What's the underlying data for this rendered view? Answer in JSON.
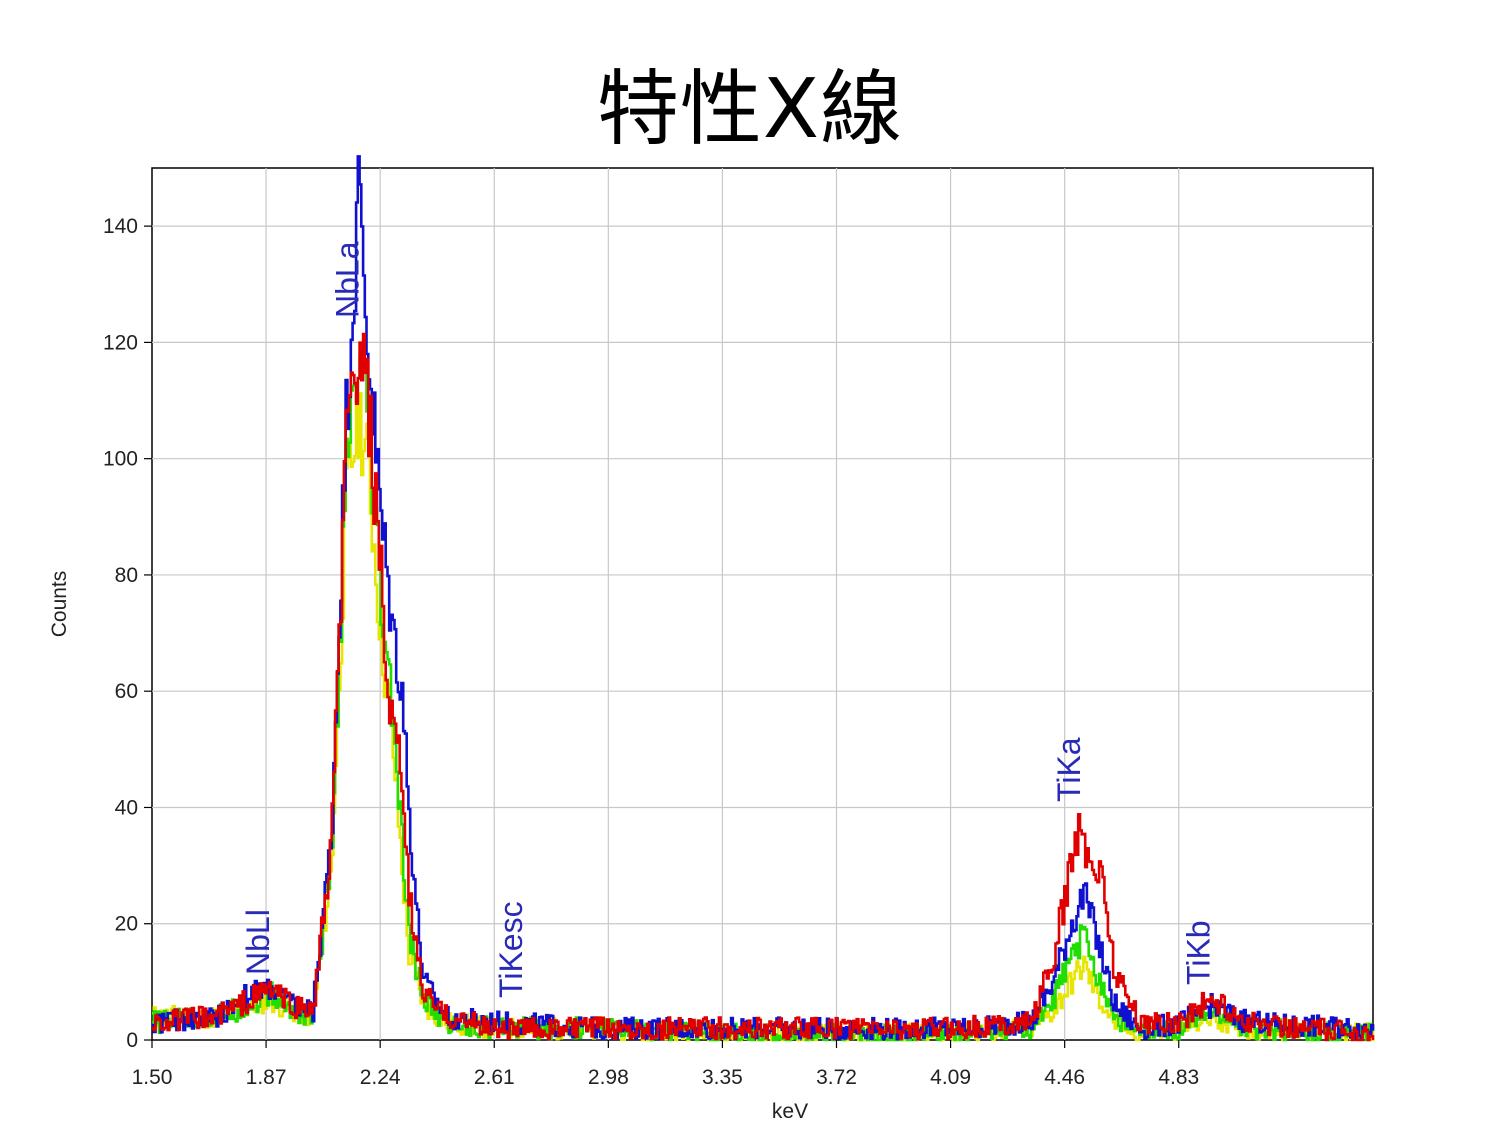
{
  "slide": {
    "title": "特性X線"
  },
  "chart_data": {
    "type": "line",
    "title": "",
    "xlabel": "keV",
    "ylabel": "Counts",
    "xlim": [
      1.5,
      5.46
    ],
    "ylim": [
      0,
      150
    ],
    "grid": true,
    "x_ticks": [
      "1.50",
      "1.87",
      "2.24",
      "2.61",
      "2.98",
      "3.35",
      "3.72",
      "4.09",
      "4.46",
      "4.83"
    ],
    "y_ticks": [
      "0",
      "20",
      "40",
      "60",
      "80",
      "100",
      "120",
      "140"
    ],
    "peak_labels": [
      {
        "text": "NbLl",
        "x": 1.88
      },
      {
        "text": "NbLa",
        "x": 2.17
      },
      {
        "text": "TiKesc",
        "x": 2.7
      },
      {
        "text": "TiKa",
        "x": 4.51
      },
      {
        "text": "TiKb",
        "x": 4.93
      }
    ],
    "series_colors": [
      "#e6e600",
      "#22dd00",
      "#1010d0",
      "#e00000"
    ],
    "series": [
      {
        "color": "#e6e600",
        "points": [
          [
            1.5,
            4
          ],
          [
            1.7,
            4
          ],
          [
            1.82,
            6
          ],
          [
            1.88,
            7
          ],
          [
            1.95,
            5
          ],
          [
            2.02,
            4
          ],
          [
            2.08,
            30
          ],
          [
            2.13,
            95
          ],
          [
            2.17,
            108
          ],
          [
            2.2,
            98
          ],
          [
            2.24,
            70
          ],
          [
            2.28,
            50
          ],
          [
            2.33,
            15
          ],
          [
            2.38,
            6
          ],
          [
            2.45,
            3
          ],
          [
            2.61,
            2
          ],
          [
            2.98,
            2
          ],
          [
            3.35,
            1
          ],
          [
            3.72,
            1
          ],
          [
            4.09,
            1
          ],
          [
            4.35,
            2
          ],
          [
            4.42,
            5
          ],
          [
            4.48,
            10
          ],
          [
            4.52,
            13
          ],
          [
            4.56,
            8
          ],
          [
            4.62,
            3
          ],
          [
            4.7,
            1
          ],
          [
            4.83,
            2
          ],
          [
            4.93,
            4
          ],
          [
            5.05,
            2
          ],
          [
            5.46,
            1
          ]
        ]
      },
      {
        "color": "#22dd00",
        "points": [
          [
            1.5,
            3
          ],
          [
            1.7,
            4
          ],
          [
            1.82,
            6
          ],
          [
            1.88,
            8
          ],
          [
            1.95,
            5
          ],
          [
            2.02,
            4
          ],
          [
            2.08,
            32
          ],
          [
            2.13,
            100
          ],
          [
            2.17,
            115
          ],
          [
            2.2,
            105
          ],
          [
            2.24,
            75
          ],
          [
            2.28,
            55
          ],
          [
            2.33,
            18
          ],
          [
            2.38,
            7
          ],
          [
            2.45,
            3
          ],
          [
            2.61,
            2
          ],
          [
            2.98,
            2
          ],
          [
            3.35,
            1
          ],
          [
            3.72,
            1
          ],
          [
            4.09,
            1
          ],
          [
            4.35,
            2
          ],
          [
            4.42,
            7
          ],
          [
            4.48,
            14
          ],
          [
            4.52,
            18
          ],
          [
            4.56,
            12
          ],
          [
            4.62,
            4
          ],
          [
            4.7,
            1
          ],
          [
            4.83,
            2
          ],
          [
            4.93,
            5
          ],
          [
            5.05,
            2
          ],
          [
            5.46,
            1
          ]
        ]
      },
      {
        "color": "#1010d0",
        "points": [
          [
            1.5,
            3
          ],
          [
            1.7,
            4
          ],
          [
            1.82,
            8
          ],
          [
            1.88,
            9
          ],
          [
            1.95,
            6
          ],
          [
            2.02,
            5
          ],
          [
            2.08,
            35
          ],
          [
            2.13,
            110
          ],
          [
            2.17,
            146
          ],
          [
            2.2,
            118
          ],
          [
            2.24,
            90
          ],
          [
            2.28,
            70
          ],
          [
            2.31,
            60
          ],
          [
            2.33,
            40
          ],
          [
            2.36,
            20
          ],
          [
            2.38,
            10
          ],
          [
            2.45,
            4
          ],
          [
            2.61,
            3
          ],
          [
            2.98,
            2
          ],
          [
            3.35,
            2
          ],
          [
            3.72,
            2
          ],
          [
            4.09,
            2
          ],
          [
            4.35,
            3
          ],
          [
            4.42,
            10
          ],
          [
            4.48,
            20
          ],
          [
            4.52,
            25
          ],
          [
            4.56,
            18
          ],
          [
            4.62,
            6
          ],
          [
            4.7,
            2
          ],
          [
            4.83,
            3
          ],
          [
            4.93,
            6
          ],
          [
            5.05,
            3
          ],
          [
            5.46,
            2
          ]
        ]
      },
      {
        "color": "#e00000",
        "points": [
          [
            1.5,
            3
          ],
          [
            1.7,
            4
          ],
          [
            1.82,
            7
          ],
          [
            1.88,
            9
          ],
          [
            1.95,
            6
          ],
          [
            2.02,
            5
          ],
          [
            2.08,
            33
          ],
          [
            2.13,
            105
          ],
          [
            2.17,
            118
          ],
          [
            2.2,
            108
          ],
          [
            2.24,
            80
          ],
          [
            2.26,
            60
          ],
          [
            2.28,
            52
          ],
          [
            2.31,
            45
          ],
          [
            2.33,
            25
          ],
          [
            2.36,
            14
          ],
          [
            2.38,
            8
          ],
          [
            2.45,
            4
          ],
          [
            2.61,
            2
          ],
          [
            2.98,
            2
          ],
          [
            3.35,
            2
          ],
          [
            3.72,
            2
          ],
          [
            4.09,
            2
          ],
          [
            4.35,
            3
          ],
          [
            4.42,
            14
          ],
          [
            4.48,
            30
          ],
          [
            4.5,
            36
          ],
          [
            4.54,
            31
          ],
          [
            4.58,
            28
          ],
          [
            4.62,
            12
          ],
          [
            4.7,
            3
          ],
          [
            4.83,
            3
          ],
          [
            4.93,
            7
          ],
          [
            5.05,
            3
          ],
          [
            5.46,
            1
          ]
        ]
      }
    ]
  }
}
